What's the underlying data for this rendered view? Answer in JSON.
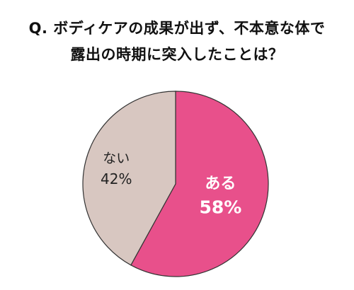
{
  "chart_data": {
    "type": "pie",
    "title_lines": [
      "Q. ボディケアの成果が出ず、不本意な体で",
      "露出の時期に突入したことは？"
    ],
    "slices": [
      {
        "label": "ある",
        "value": 58,
        "value_label": "58%",
        "color": "#E8508B",
        "text_color": "#ffffff"
      },
      {
        "label": "ない",
        "value": 42,
        "value_label": "42%",
        "color": "#D8C7C1",
        "text_color": "#222222"
      }
    ],
    "start_angle_deg": 0,
    "direction": "clockwise"
  }
}
